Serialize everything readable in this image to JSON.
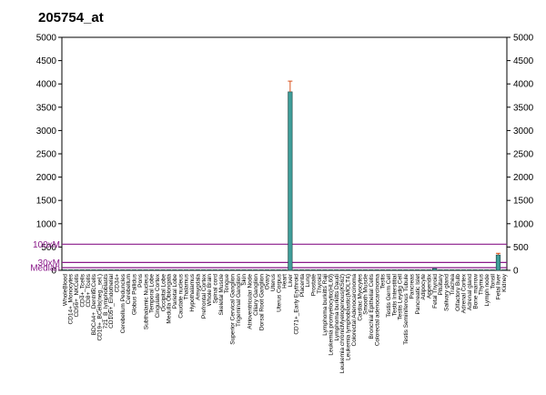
{
  "chart_data": {
    "type": "bar",
    "title": "205754_at",
    "ylim": [
      0,
      5000
    ],
    "yticks_left": [
      5000,
      4500,
      4000,
      3500,
      3000,
      2500,
      2000,
      1500,
      1000,
      500,
      0
    ],
    "yticks_right": [
      5000,
      4500,
      4000,
      3500,
      3000,
      2500,
      2000,
      1500,
      1000,
      500,
      0
    ],
    "grid": false,
    "reference_lines": [
      {
        "label": "100xM",
        "value": 560,
        "color": "#8a1a8a"
      },
      {
        "label": "30xM",
        "value": 168,
        "color": "#8a1a8a"
      },
      {
        "label": "Median",
        "value": 56,
        "color": "#8a1a8a"
      }
    ],
    "bar_color": "#3f9e9a",
    "error_color": "#d9531e",
    "categories": [
      "WholeBlood",
      "CD14+_Monocytes",
      "CD56+_NKCells",
      "CD4+_Tcells",
      "CD8+_Tcells",
      "BDCA4+_DentriticCells",
      "CD19+_BCells(neg._sel.)",
      "721_B_lymphoblasts",
      "CD105+_Endothelial",
      "CD34+",
      "Cerebellum Peduncles",
      "Cerebellum",
      "Globus Pallidus",
      "Pons",
      "Subthalamic Nucleus",
      "Temporal Lobe",
      "Cingulate Cortex",
      "Occipital Lobe",
      "Medulla Oblongata",
      "Parietal Lobe",
      "Caudate nucleus",
      "Thalamus",
      "Hypothalamus",
      "Amygdala",
      "Prefrontal Cortex",
      "Whole Brain",
      "Spinal cord",
      "Skeletal Muscle",
      "Tongue",
      "Superior Cervical Ganglion",
      "Trigeminal Ganglion",
      "Skin",
      "Atrioventricular Node",
      "Ciliary Ganglion",
      "Dorsal Root Ganglion",
      "Ovary",
      "Uterus",
      "Uterus Corpus",
      "Heart",
      "Liver",
      "CD71+_Early Erythroid",
      "Placenta",
      "Lung",
      "Prostate",
      "Thyroid",
      "Lymphoma burkitts Raji",
      "Leukemia promyelocytic(HL60)",
      "Lymphoma burkitts Daudi",
      "Leukemia chronicMyelogenous(K562)",
      "Leukemia lymphoblastic(MOLT4)",
      "Colorectal Adenocarcinoma",
      "Cardiac Myocytes",
      "Smooth Muscle",
      "Bronchial Epithelial Cells",
      "Colorectal adenocarcinoma",
      "Testis",
      "Testis Germ Cell",
      "Testis Interstitial",
      "Testis Leydig Cell",
      "Testis Seminiferous Tubule",
      "Pancreas",
      "Pancreatic Islet",
      "Adipocyte",
      "Appendix",
      "Fetal Thyroid",
      "Pituitary",
      "Salivary gland",
      "Trachea",
      "Olfactory Bulb",
      "Adrenal Cortex",
      "Adrenal gland",
      "Bone marrow",
      "Thymus",
      "Lymph node",
      "Tonsil",
      "Fetal liver",
      "Kidney"
    ],
    "values": [
      12,
      12,
      12,
      12,
      12,
      12,
      12,
      12,
      12,
      12,
      12,
      12,
      12,
      12,
      12,
      12,
      12,
      12,
      12,
      12,
      12,
      12,
      12,
      12,
      12,
      12,
      12,
      12,
      12,
      12,
      12,
      12,
      12,
      12,
      12,
      12,
      12,
      12,
      12,
      3830,
      12,
      12,
      12,
      12,
      12,
      12,
      12,
      12,
      12,
      12,
      12,
      12,
      12,
      12,
      12,
      12,
      12,
      12,
      12,
      12,
      12,
      12,
      12,
      12,
      40,
      12,
      12,
      12,
      12,
      12,
      12,
      12,
      12,
      12,
      12,
      330,
      12
    ],
    "errors": [
      0,
      0,
      0,
      0,
      0,
      0,
      0,
      0,
      0,
      0,
      0,
      0,
      0,
      0,
      0,
      0,
      0,
      0,
      0,
      0,
      0,
      0,
      0,
      0,
      0,
      0,
      0,
      0,
      0,
      0,
      0,
      0,
      0,
      0,
      0,
      0,
      0,
      0,
      0,
      230,
      0,
      0,
      0,
      0,
      0,
      0,
      0,
      0,
      0,
      0,
      0,
      0,
      0,
      0,
      0,
      0,
      0,
      0,
      0,
      0,
      0,
      0,
      0,
      0,
      0,
      0,
      0,
      0,
      0,
      0,
      0,
      0,
      0,
      0,
      0,
      35,
      0
    ]
  }
}
